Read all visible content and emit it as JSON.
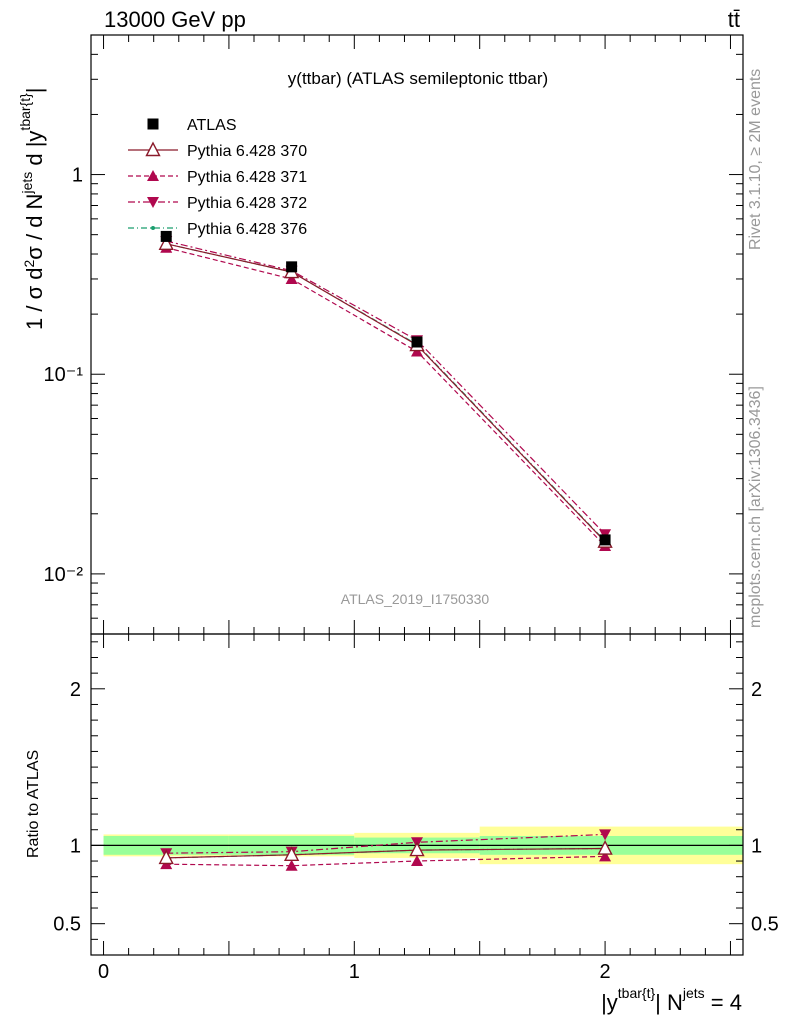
{
  "header": {
    "left_label": "13000 GeV pp",
    "right_label": "tt̄"
  },
  "side_labels": {
    "rivet": "Rivet 3.1.10, ≥ 2M events",
    "mcplots": "mcplots.cern.ch [arXiv:1306.3436]"
  },
  "colors": {
    "atlas": "#000000",
    "p370": "#8b1a2b",
    "p371": "#b0084e",
    "p372": "#b0084e",
    "p376": "#1a9e6e",
    "band_inner": "#99ff99",
    "band_outer": "#ffff99"
  },
  "chart_data": [
    {
      "type": "line",
      "title": "y(ttbar) (ATLAS semileptonic ttbar)",
      "watermark": "ATLAS_2019_I1750330",
      "ylabel": "1 / σ d²σ / d N^jets d |y^tbar{t}|",
      "yscale": "log",
      "ylim": [
        0.005,
        5
      ],
      "xlim": [
        -0.05,
        2.55
      ],
      "y_tick_labels": [
        "1",
        "10⁻¹",
        "10⁻²"
      ],
      "x_bins": [
        [
          0,
          0.5
        ],
        [
          0.5,
          1.0
        ],
        [
          1.0,
          1.5
        ],
        [
          1.5,
          2.55
        ]
      ],
      "x": [
        0.25,
        0.75,
        1.25,
        2.0
      ],
      "legend_position": "top-left",
      "series": [
        {
          "name": "ATLAS",
          "values": [
            0.49,
            0.345,
            0.145,
            0.0148
          ],
          "marker": "square",
          "line": "none"
        },
        {
          "name": "Pythia 6.428 370",
          "values": [
            0.45,
            0.325,
            0.14,
            0.0145
          ],
          "marker": "open-triangle-up",
          "line": "solid"
        },
        {
          "name": "Pythia 6.428 371",
          "values": [
            0.43,
            0.3,
            0.13,
            0.0138
          ],
          "marker": "triangle-up",
          "line": "dashed"
        },
        {
          "name": "Pythia 6.428 372",
          "values": [
            0.465,
            0.33,
            0.148,
            0.0158
          ],
          "marker": "triangle-down",
          "line": "dashdot"
        },
        {
          "name": "Pythia 6.428 376",
          "values": [
            0.45,
            0.325,
            0.141,
            0.0146
          ],
          "marker": "dot",
          "line": "dashdot"
        }
      ]
    },
    {
      "type": "line",
      "ylabel": "Ratio to ATLAS",
      "xlabel": "|y^tbar{t}| N^jets = 4",
      "ylim": [
        0.3,
        2.35
      ],
      "xlim": [
        -0.05,
        2.55
      ],
      "y_tick_labels": [
        "0.5",
        "1",
        "2"
      ],
      "x_tick_labels": [
        "0",
        "1",
        "2"
      ],
      "x": [
        0.25,
        0.75,
        1.25,
        2.0
      ],
      "bands": {
        "inner": [
          [
            0.94,
            1.06
          ],
          [
            0.94,
            1.06
          ],
          [
            0.95,
            1.05
          ],
          [
            0.94,
            1.06
          ]
        ],
        "outer": [
          [
            0.93,
            1.07
          ],
          [
            0.93,
            1.07
          ],
          [
            0.92,
            1.08
          ],
          [
            0.88,
            1.12
          ]
        ]
      },
      "series": [
        {
          "name": "Pythia 6.428 370",
          "values": [
            0.92,
            0.94,
            0.97,
            0.98
          ]
        },
        {
          "name": "Pythia 6.428 371",
          "values": [
            0.88,
            0.87,
            0.9,
            0.93
          ]
        },
        {
          "name": "Pythia 6.428 372",
          "values": [
            0.95,
            0.96,
            1.02,
            1.07
          ]
        },
        {
          "name": "Pythia 6.428 376",
          "values": [
            0.92,
            0.94,
            0.97,
            0.98
          ]
        }
      ]
    }
  ]
}
